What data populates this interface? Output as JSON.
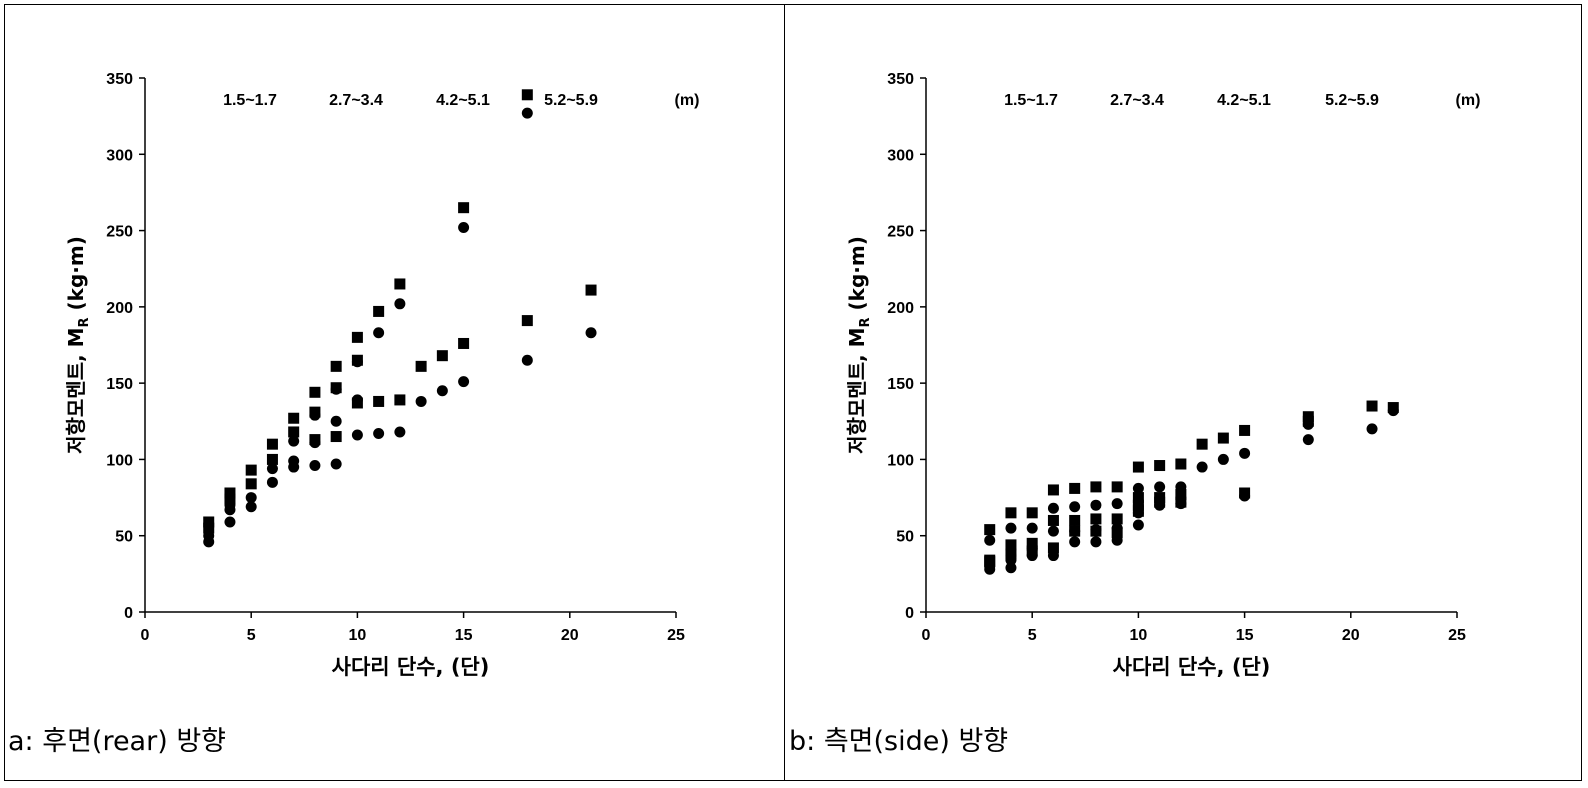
{
  "captions": {
    "a": "a: 후면(rear) 방향",
    "b": "b: 측면(side) 방향"
  },
  "colors": {
    "marker": "#000000",
    "axis": "#000000",
    "background": "#ffffff"
  },
  "chart_data": [
    {
      "type": "scatter",
      "title": "",
      "xlabel": "사다리 단수, (단)",
      "ylabel": "저항모멘트, M",
      "ylabel_sub": "R",
      "ylabel_unit": " (kg·m)",
      "xlim": [
        0,
        25
      ],
      "ylim": [
        0,
        350
      ],
      "xticks": [
        0,
        5,
        10,
        15,
        20,
        25
      ],
      "yticks": [
        0,
        50,
        100,
        150,
        200,
        250,
        300,
        350
      ],
      "grid": false,
      "annotations": [
        "1.5~1.7",
        "2.7~3.4",
        "4.2~5.1",
        "5.2~5.9",
        "(m)"
      ],
      "series": [
        {
          "marker": "square",
          "points": [
            [
              3,
              59
            ],
            [
              3,
              55
            ],
            [
              4,
              78
            ],
            [
              4,
              74
            ],
            [
              5,
              93
            ],
            [
              5,
              84
            ],
            [
              6,
              110
            ],
            [
              6,
              100
            ],
            [
              7,
              127
            ],
            [
              7,
              118
            ],
            [
              8,
              144
            ],
            [
              8,
              131
            ],
            [
              8,
              113
            ],
            [
              9,
              161
            ],
            [
              9,
              147
            ],
            [
              9,
              115
            ],
            [
              10,
              180
            ],
            [
              10,
              165
            ],
            [
              10,
              137
            ],
            [
              11,
              197
            ],
            [
              11,
              138
            ],
            [
              12,
              215
            ],
            [
              12,
              139
            ],
            [
              13,
              161
            ],
            [
              14,
              168
            ],
            [
              15,
              265
            ],
            [
              15,
              176
            ],
            [
              18,
              339
            ],
            [
              18,
              191
            ],
            [
              21,
              211
            ]
          ]
        },
        {
          "marker": "circle",
          "points": [
            [
              3,
              46
            ],
            [
              3,
              50
            ],
            [
              4,
              59
            ],
            [
              4,
              67
            ],
            [
              4,
              70
            ],
            [
              5,
              69
            ],
            [
              5,
              75
            ],
            [
              6,
              85
            ],
            [
              6,
              94
            ],
            [
              7,
              95
            ],
            [
              7,
              99
            ],
            [
              7,
              112
            ],
            [
              8,
              96
            ],
            [
              8,
              111
            ],
            [
              8,
              129
            ],
            [
              9,
              97
            ],
            [
              9,
              125
            ],
            [
              9,
              146
            ],
            [
              10,
              116
            ],
            [
              10,
              139
            ],
            [
              10,
              164
            ],
            [
              11,
              117
            ],
            [
              11,
              183
            ],
            [
              12,
              118
            ],
            [
              12,
              202
            ],
            [
              13,
              138
            ],
            [
              14,
              145
            ],
            [
              15,
              151
            ],
            [
              15,
              252
            ],
            [
              18,
              165
            ],
            [
              18,
              327
            ],
            [
              21,
              183
            ]
          ]
        }
      ]
    },
    {
      "type": "scatter",
      "title": "",
      "xlabel": "사다리 단수, (단)",
      "ylabel": "저항모멘트, M",
      "ylabel_sub": "R",
      "ylabel_unit": " (kg·m)",
      "xlim": [
        0,
        25
      ],
      "ylim": [
        0,
        350
      ],
      "xticks": [
        0,
        5,
        10,
        15,
        20,
        25
      ],
      "yticks": [
        0,
        50,
        100,
        150,
        200,
        250,
        300,
        350
      ],
      "grid": false,
      "annotations": [
        "1.5~1.7",
        "2.7~3.4",
        "4.2~5.1",
        "5.2~5.9",
        "(m)"
      ],
      "series": [
        {
          "marker": "square",
          "points": [
            [
              3,
              54
            ],
            [
              3,
              34
            ],
            [
              3,
              33
            ],
            [
              4,
              65
            ],
            [
              4,
              44
            ],
            [
              4,
              38
            ],
            [
              5,
              65
            ],
            [
              5,
              45
            ],
            [
              5,
              40
            ],
            [
              6,
              80
            ],
            [
              6,
              60
            ],
            [
              6,
              42
            ],
            [
              7,
              81
            ],
            [
              7,
              60
            ],
            [
              7,
              53
            ],
            [
              8,
              82
            ],
            [
              8,
              61
            ],
            [
              8,
              53
            ],
            [
              9,
              82
            ],
            [
              9,
              61
            ],
            [
              9,
              52
            ],
            [
              10,
              95
            ],
            [
              10,
              75
            ],
            [
              10,
              70
            ],
            [
              10,
              66
            ],
            [
              11,
              96
            ],
            [
              11,
              75
            ],
            [
              11,
              72
            ],
            [
              12,
              97
            ],
            [
              12,
              77
            ],
            [
              12,
              72
            ],
            [
              13,
              110
            ],
            [
              14,
              114
            ],
            [
              15,
              119
            ],
            [
              15,
              78
            ],
            [
              18,
              128
            ],
            [
              18,
              125
            ],
            [
              21,
              135
            ],
            [
              22,
              134
            ]
          ]
        },
        {
          "marker": "circle",
          "points": [
            [
              3,
              47
            ],
            [
              3,
              30
            ],
            [
              3,
              28
            ],
            [
              4,
              55
            ],
            [
              4,
              37
            ],
            [
              4,
              34
            ],
            [
              4,
              29
            ],
            [
              5,
              55
            ],
            [
              5,
              41
            ],
            [
              5,
              37
            ],
            [
              6,
              68
            ],
            [
              6,
              53
            ],
            [
              6,
              37
            ],
            [
              7,
              69
            ],
            [
              7,
              53
            ],
            [
              7,
              46
            ],
            [
              8,
              70
            ],
            [
              8,
              54
            ],
            [
              8,
              46
            ],
            [
              9,
              71
            ],
            [
              9,
              55
            ],
            [
              9,
              47
            ],
            [
              10,
              81
            ],
            [
              10,
              70
            ],
            [
              10,
              65
            ],
            [
              10,
              57
            ],
            [
              11,
              82
            ],
            [
              11,
              70
            ],
            [
              12,
              82
            ],
            [
              12,
              71
            ],
            [
              13,
              95
            ],
            [
              14,
              100
            ],
            [
              15,
              104
            ],
            [
              15,
              76
            ],
            [
              18,
              113
            ],
            [
              18,
              123
            ],
            [
              21,
              120
            ],
            [
              22,
              132
            ]
          ]
        }
      ]
    }
  ]
}
